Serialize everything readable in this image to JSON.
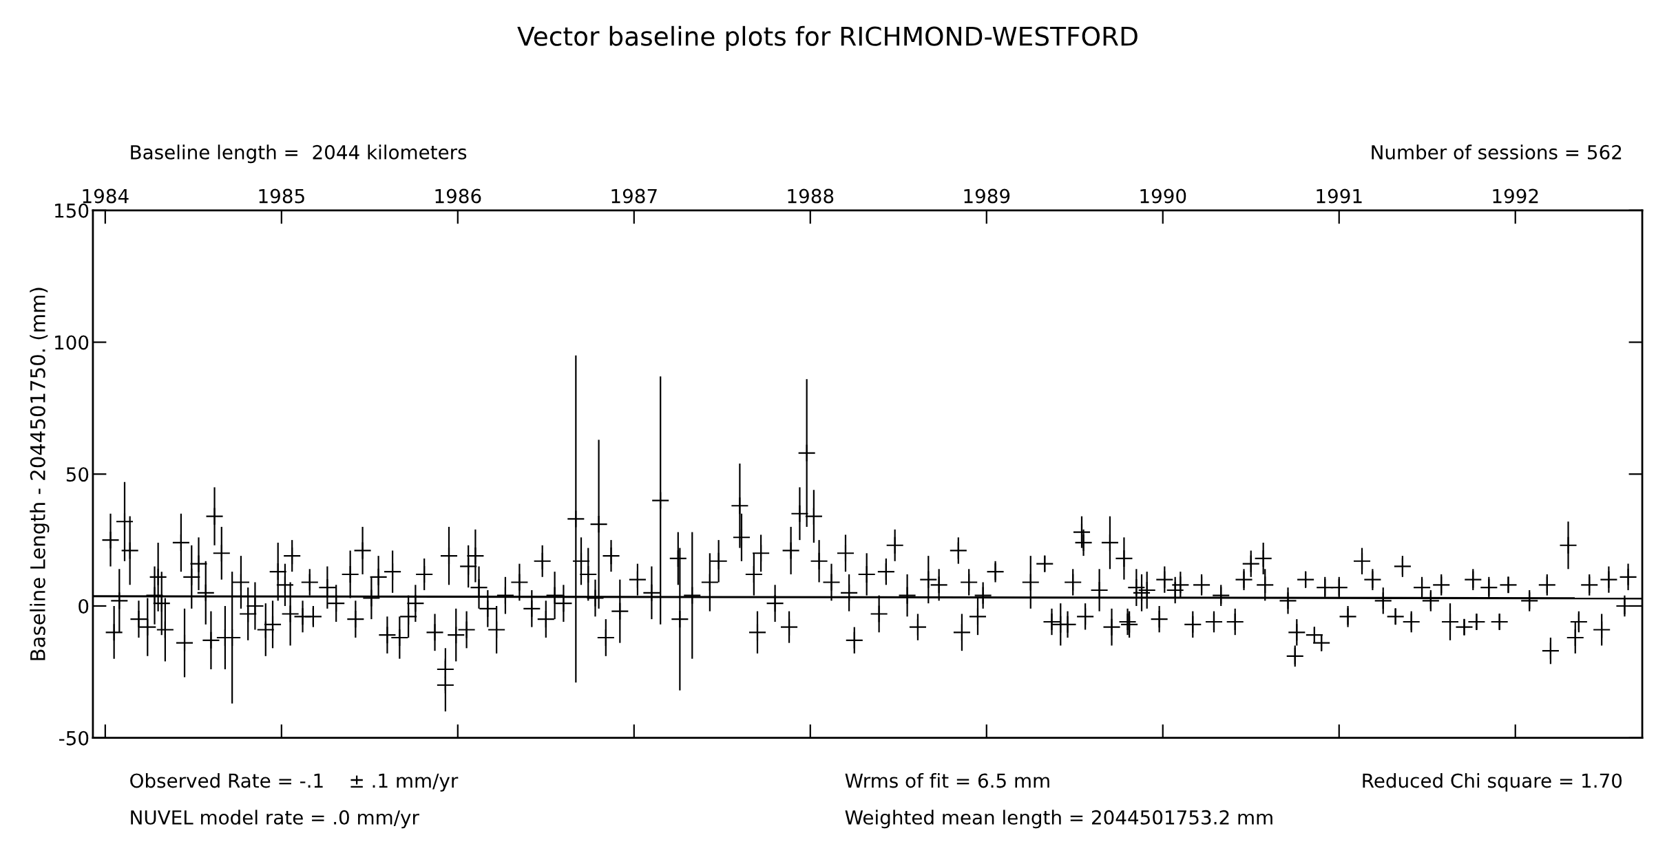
{
  "chart_data": {
    "type": "scatter",
    "title": "Vector baseline plots for RICHMOND-WESTFORD",
    "ylabel": "Baseline Length - 2044501750. (mm)",
    "annotations": [
      "Baseline length =  2044 kilometers",
      "Number of sessions = 562",
      "Observed Rate = -.1    ± .1 mm/yr",
      "NUVEL model rate = .0 mm/yr",
      "Wrms of fit = 6.5 mm",
      "Weighted mean length = 2044501753.2 mm",
      "Reduced Chi square = 1.70"
    ],
    "xlim": [
      1983.93,
      1992.72
    ],
    "xticks": [
      1984,
      1985,
      1986,
      1987,
      1988,
      1989,
      1990,
      1991,
      1992
    ],
    "ylim": [
      -50,
      150
    ],
    "yticks": [
      -50,
      0,
      50,
      100,
      150
    ],
    "marker": "cross",
    "series": [
      {
        "color": "#000000",
        "x": [
          1984.03,
          1984.05,
          1984.08,
          1984.11,
          1984.14,
          1984.19,
          1984.24,
          1984.28,
          1984.3,
          1984.32,
          1984.34,
          1984.43,
          1984.45,
          1984.49,
          1984.53,
          1984.57,
          1984.6,
          1984.62,
          1984.66,
          1984.68,
          1984.72,
          1984.77,
          1984.81,
          1984.85,
          1984.91,
          1984.95,
          1984.98,
          1985.02,
          1985.05,
          1985.06,
          1985.12,
          1985.16,
          1985.18,
          1985.26,
          1985.31,
          1985.39,
          1985.42,
          1985.46,
          1985.51,
          1985.55,
          1985.6,
          1985.63,
          1985.67,
          1985.72,
          1985.76,
          1985.81,
          1985.87,
          1985.93,
          1985.93,
          1985.95,
          1985.99,
          1986.05,
          1986.06,
          1986.1,
          1986.12,
          1986.17,
          1986.22,
          1986.27,
          1986.35,
          1986.42,
          1986.48,
          1986.5,
          1986.55,
          1986.6,
          1986.67,
          1986.7,
          1986.74,
          1986.78,
          1986.8,
          1986.84,
          1986.87,
          1986.92,
          1987.02,
          1987.1,
          1987.15,
          1987.25,
          1987.26,
          1987.33,
          1987.43,
          1987.48,
          1987.6,
          1987.61,
          1987.68,
          1987.7,
          1987.72,
          1987.8,
          1987.88,
          1987.89,
          1987.94,
          1987.98,
          1988.02,
          1988.05,
          1988.12,
          1988.2,
          1988.22,
          1988.25,
          1988.32,
          1988.39,
          1988.43,
          1988.48,
          1988.55,
          1988.61,
          1988.67,
          1988.73,
          1988.84,
          1988.86,
          1988.9,
          1988.95,
          1988.98,
          1989.05,
          1989.25,
          1989.33,
          1989.37,
          1989.42,
          1989.46,
          1989.49,
          1989.54,
          1989.55,
          1989.56,
          1989.64,
          1989.7,
          1989.71,
          1989.78,
          1989.8,
          1989.81,
          1989.85,
          1989.88,
          1989.91,
          1989.98,
          1990.01,
          1990.07,
          1990.1,
          1990.17,
          1990.22,
          1990.29,
          1990.33,
          1990.41,
          1990.46,
          1990.5,
          1990.57,
          1990.58,
          1990.71,
          1990.75,
          1990.76,
          1990.81,
          1990.86,
          1990.9,
          1990.92,
          1991.0,
          1991.05,
          1991.13,
          1991.19,
          1991.25,
          1991.32,
          1991.36,
          1991.41,
          1991.47,
          1991.52,
          1991.58,
          1991.63,
          1991.71,
          1991.76,
          1991.78,
          1991.85,
          1991.91,
          1991.96,
          1992.08,
          1992.18,
          1992.2,
          1992.3,
          1992.34,
          1992.36,
          1992.42,
          1992.49,
          1992.53,
          1992.62,
          1992.64
        ],
        "values": [
          25,
          -10,
          2,
          32,
          21,
          -5,
          -8,
          4,
          11,
          1,
          -9,
          24,
          -14,
          11,
          16,
          5,
          -13,
          34,
          20,
          -12,
          -12,
          9,
          -3,
          0,
          -9,
          -7,
          13,
          8,
          -3,
          19,
          -4,
          9,
          -4,
          7,
          1,
          12,
          -5,
          21,
          3,
          11,
          -11,
          13,
          -12,
          -4,
          1,
          12,
          -10,
          -24,
          -30,
          19,
          -11,
          -9,
          15,
          19,
          7,
          -1,
          -9,
          4,
          9,
          -1,
          17,
          -5,
          4,
          1,
          33,
          17,
          12,
          3,
          31,
          -12,
          19,
          -2,
          10,
          5,
          40,
          18,
          -5,
          4,
          9,
          17,
          38,
          26,
          12,
          -10,
          20,
          1,
          -8,
          21,
          35,
          58,
          34,
          17,
          9,
          20,
          5,
          -13,
          12,
          -3,
          13,
          23,
          4,
          -8,
          10,
          8,
          21,
          -10,
          9,
          -4,
          4,
          13,
          9,
          16,
          -6,
          -7,
          -7,
          9,
          28,
          24,
          -4,
          6,
          24,
          -8,
          18,
          -6,
          -7,
          7,
          5,
          6,
          -5,
          10,
          6,
          8,
          -7,
          8,
          -6,
          4,
          -6,
          10,
          16,
          18,
          8,
          2,
          -19,
          -10,
          10,
          -11,
          -14,
          7,
          7,
          -4,
          17,
          10,
          2,
          -4,
          15,
          -6,
          7,
          2,
          8,
          -6,
          -8,
          10,
          -6,
          7,
          -6,
          8,
          2,
          8,
          -17,
          23,
          -12,
          -6,
          8,
          -9,
          10,
          0,
          11
        ],
        "errors": [
          10,
          10,
          12,
          15,
          13,
          7,
          11,
          11,
          13,
          12,
          12,
          11,
          13,
          12,
          10,
          12,
          11,
          11,
          10,
          12,
          25,
          10,
          10,
          9,
          10,
          9,
          11,
          8,
          12,
          6,
          6,
          5,
          4,
          8,
          7,
          9,
          7,
          9,
          8,
          8,
          7,
          8,
          8,
          8,
          7,
          6,
          7,
          8,
          10,
          11,
          10,
          7,
          8,
          10,
          8,
          7,
          9,
          7,
          7,
          7,
          6,
          7,
          9,
          7,
          62,
          9,
          10,
          7,
          32,
          7,
          6,
          12,
          6,
          10,
          47,
          10,
          27,
          24,
          11,
          8,
          16,
          9,
          8,
          8,
          7,
          7,
          6,
          9,
          10,
          28,
          10,
          8,
          7,
          7,
          7,
          5,
          8,
          7,
          5,
          6,
          8,
          5,
          9,
          6,
          5,
          7,
          5,
          7,
          5,
          4,
          10,
          3,
          5,
          8,
          5,
          5,
          6,
          5,
          5,
          8,
          10,
          7,
          8,
          5,
          5,
          7,
          7,
          7,
          5,
          5,
          5,
          5,
          5,
          4,
          4,
          4,
          5,
          4,
          5,
          6,
          6,
          5,
          4,
          5,
          3,
          3,
          3,
          4,
          4,
          4,
          5,
          4,
          5,
          3,
          4,
          4,
          4,
          4,
          4,
          7,
          3,
          4,
          3,
          4,
          3,
          3,
          4,
          4,
          5,
          9,
          6,
          4,
          4,
          6,
          5,
          4,
          5
        ]
      },
      {
        "type": "line",
        "color": "#000000",
        "marker": "none",
        "line_style": "solid",
        "x": [
          1983.93,
          1992.72
        ],
        "values": [
          3.7,
          2.9
        ]
      }
    ]
  }
}
